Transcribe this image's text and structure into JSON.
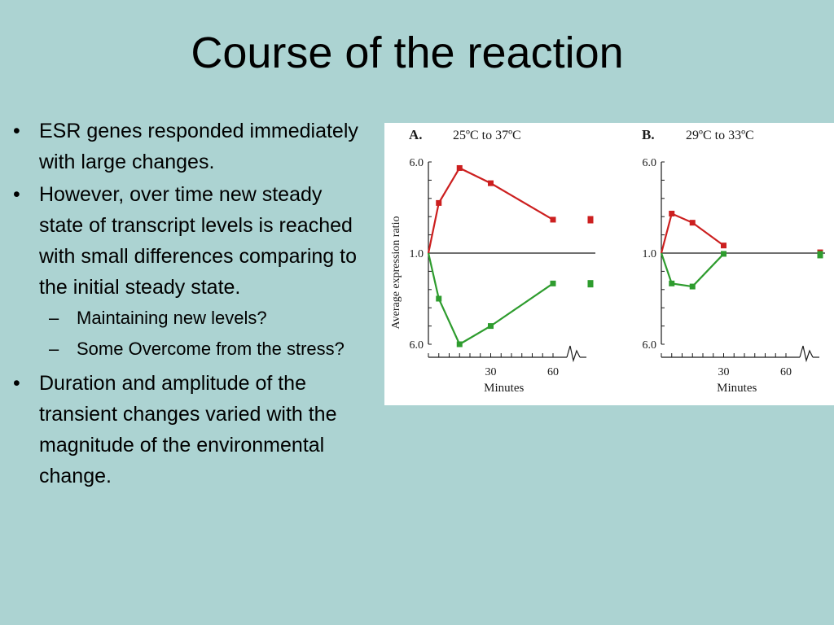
{
  "slide": {
    "title": "Course of the reaction",
    "bullets": [
      {
        "text": "ESR genes responded immediately with large changes.",
        "sub": []
      },
      {
        "text": "However, over time new steady state of transcript levels is reached with small differences comparing to the initial steady state.",
        "sub": [
          "Maintaining new levels?",
          "Some Overcome from the stress?"
        ]
      },
      {
        "text": "Duration and amplitude of the transient changes varied with the magnitude of the environmental change.",
        "sub": []
      }
    ],
    "bullet_char": "•",
    "dash_char": "–"
  },
  "figure": {
    "ylabel": "Average expression ratio",
    "xlabel": "Minutes",
    "colors": {
      "up": "#cc1f1f",
      "down": "#2e9c2e",
      "axis": "#1a1a1a"
    },
    "panels": [
      {
        "letter": "A.",
        "condition": "25ºC  to 37ºC",
        "yticks": [
          "6.0",
          "1.0",
          "6.0"
        ],
        "xticks": [
          "30",
          "60"
        ],
        "up_series": {
          "x": [
            0,
            5,
            15,
            30,
            60
          ],
          "y": [
            1.0,
            3.3,
            5.6,
            4.6,
            2.2
          ]
        },
        "down_series": {
          "x": [
            0,
            5,
            15,
            30,
            60
          ],
          "y": [
            1.0,
            3.0,
            6.0,
            4.8,
            2.0
          ]
        },
        "steady_up": 1.5,
        "steady_down": 1.0
      },
      {
        "letter": "B.",
        "condition": "29ºC  to 33ºC",
        "yticks": [
          "6.0",
          "1.0",
          "6.0"
        ],
        "xticks": [
          "30",
          "60"
        ],
        "up_series": {
          "x": [
            0,
            5,
            15,
            30
          ],
          "y": [
            1.0,
            2.6,
            2.0,
            0.5
          ]
        },
        "down_series": {
          "x": [
            0,
            5,
            15,
            30
          ],
          "y": [
            1.0,
            2.0,
            2.2,
            0.05
          ]
        },
        "steady_up": 0.05,
        "steady_down": 0.05
      }
    ]
  }
}
